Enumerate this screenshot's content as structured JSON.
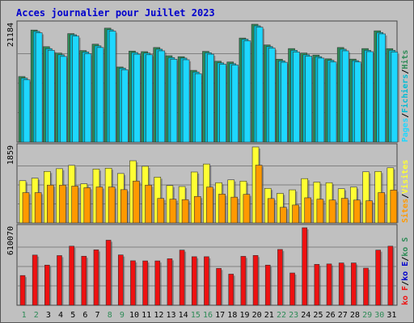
{
  "title": "Acces journalier pour Juillet 2023",
  "colors": {
    "background": "#c0c0c0",
    "border": "#555555",
    "title": "#0000cc",
    "hits": "#2e8b57",
    "fichiers": "#00bcd4",
    "pages": "#1ed7ff",
    "visites": "#ffff33",
    "sites": "#ff9900",
    "ko": "#ee1111",
    "weekend": "#2e8b57",
    "weekday": "#000000"
  },
  "chart_data": [
    {
      "type": "bar",
      "panel": "top",
      "ylabel_value": "21184",
      "ylim": [
        0,
        21184
      ],
      "categories": [
        "1",
        "2",
        "3",
        "4",
        "5",
        "6",
        "7",
        "8",
        "9",
        "10",
        "11",
        "12",
        "13",
        "14",
        "15",
        "16",
        "17",
        "18",
        "19",
        "20",
        "21",
        "22",
        "23",
        "24",
        "25",
        "26",
        "27",
        "28",
        "29",
        "30",
        "31"
      ],
      "weekend": [
        "1",
        "2",
        "8",
        "9",
        "15",
        "16",
        "22",
        "23",
        "29",
        "30"
      ],
      "series": [
        {
          "name": "Hits",
          "values": [
            11780,
            20140,
            17150,
            16000,
            19500,
            16450,
            17600,
            20480,
            13500,
            16360,
            16260,
            17000,
            15520,
            15350,
            12900,
            16310,
            14530,
            14400,
            18700,
            21184,
            17460,
            14900,
            16810,
            16010,
            15640,
            14970,
            17000,
            14920,
            16810,
            20000,
            16800
          ]
        },
        {
          "name": "Fichiers",
          "values": [
            11500,
            19900,
            16800,
            15700,
            19300,
            16200,
            17300,
            20200,
            13300,
            16100,
            16000,
            16700,
            15200,
            15100,
            12600,
            16050,
            14250,
            14100,
            18500,
            20900,
            17180,
            14600,
            16500,
            15700,
            15350,
            14700,
            16700,
            14650,
            16500,
            19700,
            16500
          ]
        },
        {
          "name": "Pages",
          "values": [
            11200,
            19650,
            16500,
            15400,
            19050,
            15900,
            17000,
            19950,
            13000,
            15800,
            15700,
            16400,
            14900,
            14800,
            12300,
            15800,
            14000,
            13850,
            18200,
            20650,
            16900,
            14350,
            16200,
            15450,
            15100,
            14400,
            16400,
            14400,
            16250,
            19450,
            16200
          ]
        }
      ]
    },
    {
      "type": "bar",
      "panel": "middle",
      "ylabel_value": "1859",
      "ylim": [
        0,
        1859
      ],
      "categories": [
        "1",
        "2",
        "3",
        "4",
        "5",
        "6",
        "7",
        "8",
        "9",
        "10",
        "11",
        "12",
        "13",
        "14",
        "15",
        "16",
        "17",
        "18",
        "19",
        "20",
        "21",
        "22",
        "23",
        "24",
        "25",
        "26",
        "27",
        "28",
        "29",
        "30",
        "31"
      ],
      "series": [
        {
          "name": "Visites",
          "values": [
            1033,
            1095,
            1260,
            1327,
            1408,
            957,
            1318,
            1339,
            1209,
            1522,
            1387,
            1121,
            914,
            890,
            1246,
            1441,
            984,
            1053,
            1023,
            1859,
            845,
            723,
            809,
            1084,
            999,
            984,
            836,
            877,
            1251,
            1260,
            1349
          ]
        },
        {
          "name": "Sites",
          "values": [
            741,
            741,
            925,
            925,
            900,
            861,
            879,
            879,
            814,
            1024,
            925,
            599,
            581,
            569,
            646,
            877,
            705,
            630,
            699,
            1413,
            596,
            381,
            437,
            614,
            581,
            559,
            601,
            559,
            541,
            741,
            804
          ]
        }
      ]
    },
    {
      "type": "bar",
      "panel": "bottom",
      "ylabel_value": "610070",
      "ylim": [
        0,
        610070
      ],
      "categories": [
        "1",
        "2",
        "3",
        "4",
        "5",
        "6",
        "7",
        "8",
        "9",
        "10",
        "11",
        "12",
        "13",
        "14",
        "15",
        "16",
        "17",
        "18",
        "19",
        "20",
        "21",
        "22",
        "23",
        "24",
        "25",
        "26",
        "27",
        "28",
        "29",
        "30",
        "31"
      ],
      "series": [
        {
          "name": "ko",
          "values": [
            234000,
            395000,
            316000,
            391000,
            465000,
            386000,
            436000,
            512000,
            396000,
            350000,
            349000,
            349000,
            366000,
            434000,
            382000,
            382000,
            290000,
            245000,
            385000,
            392000,
            316000,
            439000,
            254000,
            610070,
            322000,
            325000,
            333000,
            333000,
            292000,
            434000,
            465000
          ]
        }
      ]
    }
  ],
  "right_labels": {
    "top": [
      {
        "text": "Pages",
        "color": "#1ed7ff"
      },
      {
        "text": "Fichiers",
        "color": "#00bcd4"
      },
      {
        "text": "Hits",
        "color": "#2e8b57"
      }
    ],
    "middle": [
      {
        "text": "Sites",
        "color": "#ff9900"
      },
      {
        "text": "Visites",
        "color": "#ffff33"
      }
    ],
    "bottom": [
      {
        "text": "ko F",
        "color": "#ee1111"
      },
      {
        "text": "ko E",
        "color": "#0000cc"
      },
      {
        "text": "ko S",
        "color": "#2e8b57"
      }
    ]
  }
}
